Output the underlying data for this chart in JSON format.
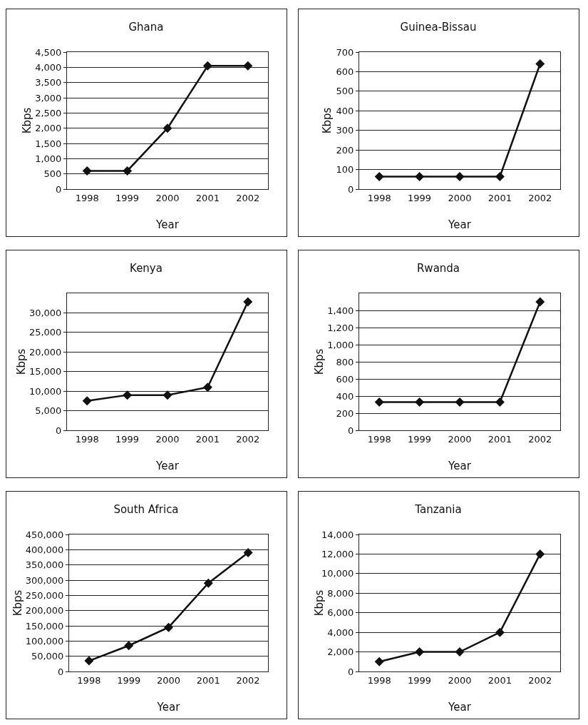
{
  "chart_data": [
    {
      "type": "line",
      "title": "Ghana",
      "xlabel": "Year",
      "ylabel": "Kbps",
      "categories": [
        "1998",
        "1999",
        "2000",
        "2001",
        "2002"
      ],
      "series": [
        {
          "color": "#111111",
          "values": [
            600,
            600,
            2000,
            4050,
            4050
          ]
        }
      ],
      "ylim": [
        0,
        4500
      ],
      "yticks": [
        {
          "value": 0,
          "label": "0"
        },
        {
          "value": 500,
          "label": "500"
        },
        {
          "value": 1000,
          "label": "1,000"
        },
        {
          "value": 1500,
          "label": "1,500"
        },
        {
          "value": 2000,
          "label": "2,000"
        },
        {
          "value": 2500,
          "label": "2,500"
        },
        {
          "value": 3000,
          "label": "3,000"
        },
        {
          "value": 3500,
          "label": "3,500"
        },
        {
          "value": 4000,
          "label": "4,000"
        },
        {
          "value": 4500,
          "label": "4,500"
        }
      ],
      "grid": "y",
      "marker": "diamond",
      "line_style": "solid"
    },
    {
      "type": "line",
      "title": "Guinea-Bissau",
      "xlabel": "Year",
      "ylabel": "Kbps",
      "categories": [
        "1998",
        "1999",
        "2000",
        "2001",
        "2002"
      ],
      "series": [
        {
          "color": "#111111",
          "values": [
            64,
            64,
            64,
            64,
            640
          ]
        }
      ],
      "ylim": [
        0,
        700
      ],
      "yticks": [
        0,
        100,
        200,
        300,
        400,
        500,
        600,
        700
      ],
      "grid": "y",
      "marker": "diamond",
      "line_style": "solid"
    },
    {
      "type": "line",
      "title": "Kenya",
      "xlabel": "Year",
      "ylabel": "Kbps",
      "categories": [
        "1998",
        "1999",
        "2000",
        "2001",
        "2002"
      ],
      "series": [
        {
          "color": "#111111",
          "values": [
            7500,
            9000,
            9000,
            11000,
            32800
          ]
        }
      ],
      "ylim": [
        0,
        35000
      ],
      "yticks": [
        {
          "value": 0,
          "label": "0"
        },
        {
          "value": 5000,
          "label": "5,000"
        },
        {
          "value": 10000,
          "label": "10,000"
        },
        {
          "value": 15000,
          "label": "15,000"
        },
        {
          "value": 20000,
          "label": "20,000"
        },
        {
          "value": 25000,
          "label": "25,000"
        },
        {
          "value": 30000,
          "label": "30,000"
        }
      ],
      "grid": "y",
      "marker": "diamond",
      "line_style": "solid"
    },
    {
      "type": "line",
      "title": "Rwanda",
      "xlabel": "Year",
      "ylabel": "Kbps",
      "categories": [
        "1998",
        "1999",
        "2000",
        "2001",
        "2002"
      ],
      "series": [
        {
          "color": "#111111",
          "values": [
            330,
            330,
            330,
            330,
            1500
          ]
        }
      ],
      "ylim": [
        0,
        1600
      ],
      "yticks": [
        {
          "value": 0,
          "label": "0"
        },
        {
          "value": 200,
          "label": "200"
        },
        {
          "value": 400,
          "label": "400"
        },
        {
          "value": 600,
          "label": "600"
        },
        {
          "value": 800,
          "label": "800"
        },
        {
          "value": 1000,
          "label": "1,000"
        },
        {
          "value": 1200,
          "label": "1,200"
        },
        {
          "value": 1400,
          "label": "1,400"
        }
      ],
      "grid": "y",
      "marker": "diamond",
      "line_style": "solid"
    },
    {
      "type": "line",
      "title": "South Africa",
      "xlabel": "Year",
      "ylabel": "Kbps",
      "categories": [
        "1998",
        "1999",
        "2000",
        "2001",
        "2002"
      ],
      "series": [
        {
          "color": "#111111",
          "values": [
            35000,
            85000,
            145000,
            290000,
            390000
          ]
        }
      ],
      "ylim": [
        0,
        450000
      ],
      "yticks": [
        {
          "value": 0,
          "label": "0"
        },
        {
          "value": 50000,
          "label": "50,000"
        },
        {
          "value": 100000,
          "label": "100,000"
        },
        {
          "value": 150000,
          "label": "150,000"
        },
        {
          "value": 200000,
          "label": "200,000"
        },
        {
          "value": 250000,
          "label": "250,000"
        },
        {
          "value": 300000,
          "label": "300,000"
        },
        {
          "value": 350000,
          "label": "350,000"
        },
        {
          "value": 400000,
          "label": "400,000"
        },
        {
          "value": 450000,
          "label": "450,000"
        }
      ],
      "grid": "y",
      "marker": "diamond",
      "line_style": "solid"
    },
    {
      "type": "line",
      "title": "Tanzania",
      "xlabel": "Year",
      "ylabel": "Kbps",
      "categories": [
        "1998",
        "1999",
        "2000",
        "2001",
        "2002"
      ],
      "series": [
        {
          "color": "#111111",
          "values": [
            1000,
            2000,
            2000,
            4000,
            12000
          ]
        }
      ],
      "ylim": [
        0,
        14000
      ],
      "yticks": [
        {
          "value": 0,
          "label": "0"
        },
        {
          "value": 2000,
          "label": "2,000"
        },
        {
          "value": 4000,
          "label": "4,000"
        },
        {
          "value": 6000,
          "label": "6,000"
        },
        {
          "value": 8000,
          "label": "8,000"
        },
        {
          "value": 10000,
          "label": "10,000"
        },
        {
          "value": 12000,
          "label": "12,000"
        },
        {
          "value": 14000,
          "label": "14,000"
        }
      ],
      "grid": "y",
      "marker": "diamond",
      "line_style": "solid"
    }
  ]
}
